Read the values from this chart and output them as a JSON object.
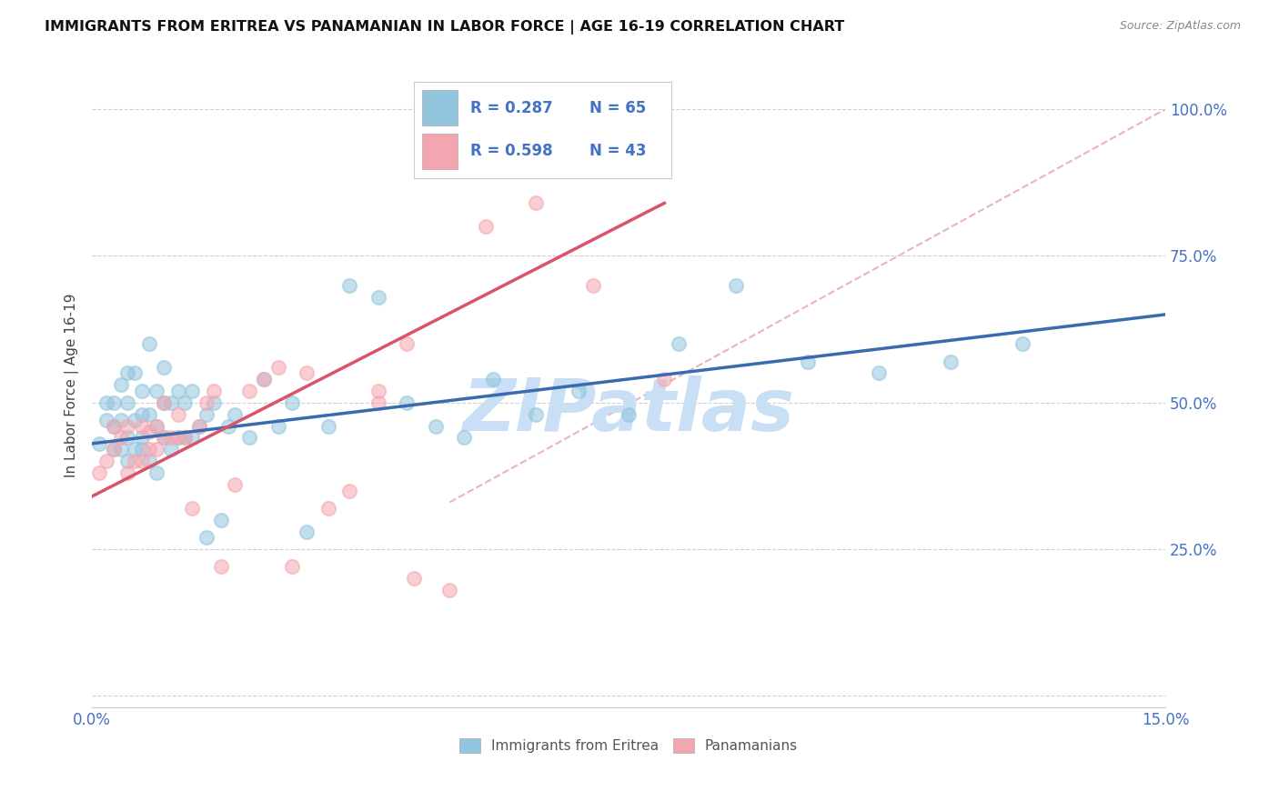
{
  "title": "IMMIGRANTS FROM ERITREA VS PANAMANIAN IN LABOR FORCE | AGE 16-19 CORRELATION CHART",
  "source": "Source: ZipAtlas.com",
  "ylabel": "In Labor Force | Age 16-19",
  "xlim": [
    0.0,
    0.15
  ],
  "ylim": [
    -0.02,
    1.08
  ],
  "yticks": [
    0.0,
    0.25,
    0.5,
    0.75,
    1.0
  ],
  "ytick_labels": [
    "",
    "25.0%",
    "50.0%",
    "75.0%",
    "100.0%"
  ],
  "blue_color": "#92c5de",
  "pink_color": "#f4a6b0",
  "blue_line_color": "#3b6baf",
  "pink_line_color": "#d9536a",
  "diagonal_color": "#e8b4c0",
  "watermark": "ZIPatlas",
  "watermark_color": "#c8dff5",
  "blue_scatter_x": [
    0.001,
    0.002,
    0.002,
    0.003,
    0.003,
    0.003,
    0.004,
    0.004,
    0.004,
    0.005,
    0.005,
    0.005,
    0.005,
    0.006,
    0.006,
    0.006,
    0.007,
    0.007,
    0.007,
    0.007,
    0.008,
    0.008,
    0.008,
    0.009,
    0.009,
    0.009,
    0.01,
    0.01,
    0.01,
    0.011,
    0.011,
    0.012,
    0.012,
    0.013,
    0.013,
    0.014,
    0.014,
    0.015,
    0.016,
    0.016,
    0.017,
    0.018,
    0.019,
    0.02,
    0.022,
    0.024,
    0.026,
    0.028,
    0.03,
    0.033,
    0.036,
    0.04,
    0.044,
    0.048,
    0.052,
    0.056,
    0.062,
    0.068,
    0.075,
    0.082,
    0.09,
    0.1,
    0.11,
    0.12,
    0.13
  ],
  "blue_scatter_y": [
    0.43,
    0.47,
    0.5,
    0.42,
    0.46,
    0.5,
    0.42,
    0.47,
    0.53,
    0.4,
    0.44,
    0.5,
    0.55,
    0.42,
    0.47,
    0.55,
    0.42,
    0.44,
    0.48,
    0.52,
    0.4,
    0.48,
    0.6,
    0.38,
    0.46,
    0.52,
    0.44,
    0.5,
    0.56,
    0.42,
    0.5,
    0.44,
    0.52,
    0.44,
    0.5,
    0.44,
    0.52,
    0.46,
    0.27,
    0.48,
    0.5,
    0.3,
    0.46,
    0.48,
    0.44,
    0.54,
    0.46,
    0.5,
    0.28,
    0.46,
    0.7,
    0.68,
    0.5,
    0.46,
    0.44,
    0.54,
    0.48,
    0.52,
    0.48,
    0.6,
    0.7,
    0.57,
    0.55,
    0.57,
    0.6
  ],
  "pink_scatter_x": [
    0.001,
    0.002,
    0.003,
    0.003,
    0.004,
    0.005,
    0.005,
    0.006,
    0.007,
    0.007,
    0.008,
    0.008,
    0.009,
    0.009,
    0.01,
    0.01,
    0.011,
    0.012,
    0.012,
    0.013,
    0.014,
    0.015,
    0.016,
    0.017,
    0.018,
    0.02,
    0.022,
    0.024,
    0.026,
    0.028,
    0.03,
    0.033,
    0.036,
    0.04,
    0.044,
    0.048,
    0.055,
    0.062,
    0.07,
    0.08,
    0.04,
    0.045,
    0.05
  ],
  "pink_scatter_y": [
    0.38,
    0.4,
    0.42,
    0.46,
    0.44,
    0.38,
    0.46,
    0.4,
    0.4,
    0.46,
    0.42,
    0.45,
    0.42,
    0.46,
    0.44,
    0.5,
    0.44,
    0.44,
    0.48,
    0.44,
    0.32,
    0.46,
    0.5,
    0.52,
    0.22,
    0.36,
    0.52,
    0.54,
    0.56,
    0.22,
    0.55,
    0.32,
    0.35,
    0.5,
    0.6,
    1.0,
    0.8,
    0.84,
    0.7,
    0.54,
    0.52,
    0.2,
    0.18
  ],
  "blue_line_x": [
    0.0,
    0.15
  ],
  "blue_line_y": [
    0.43,
    0.65
  ],
  "pink_line_x": [
    0.0,
    0.08
  ],
  "pink_line_y": [
    0.34,
    0.84
  ],
  "diag_line_x": [
    0.05,
    0.15
  ],
  "diag_line_y": [
    0.33,
    1.0
  ]
}
